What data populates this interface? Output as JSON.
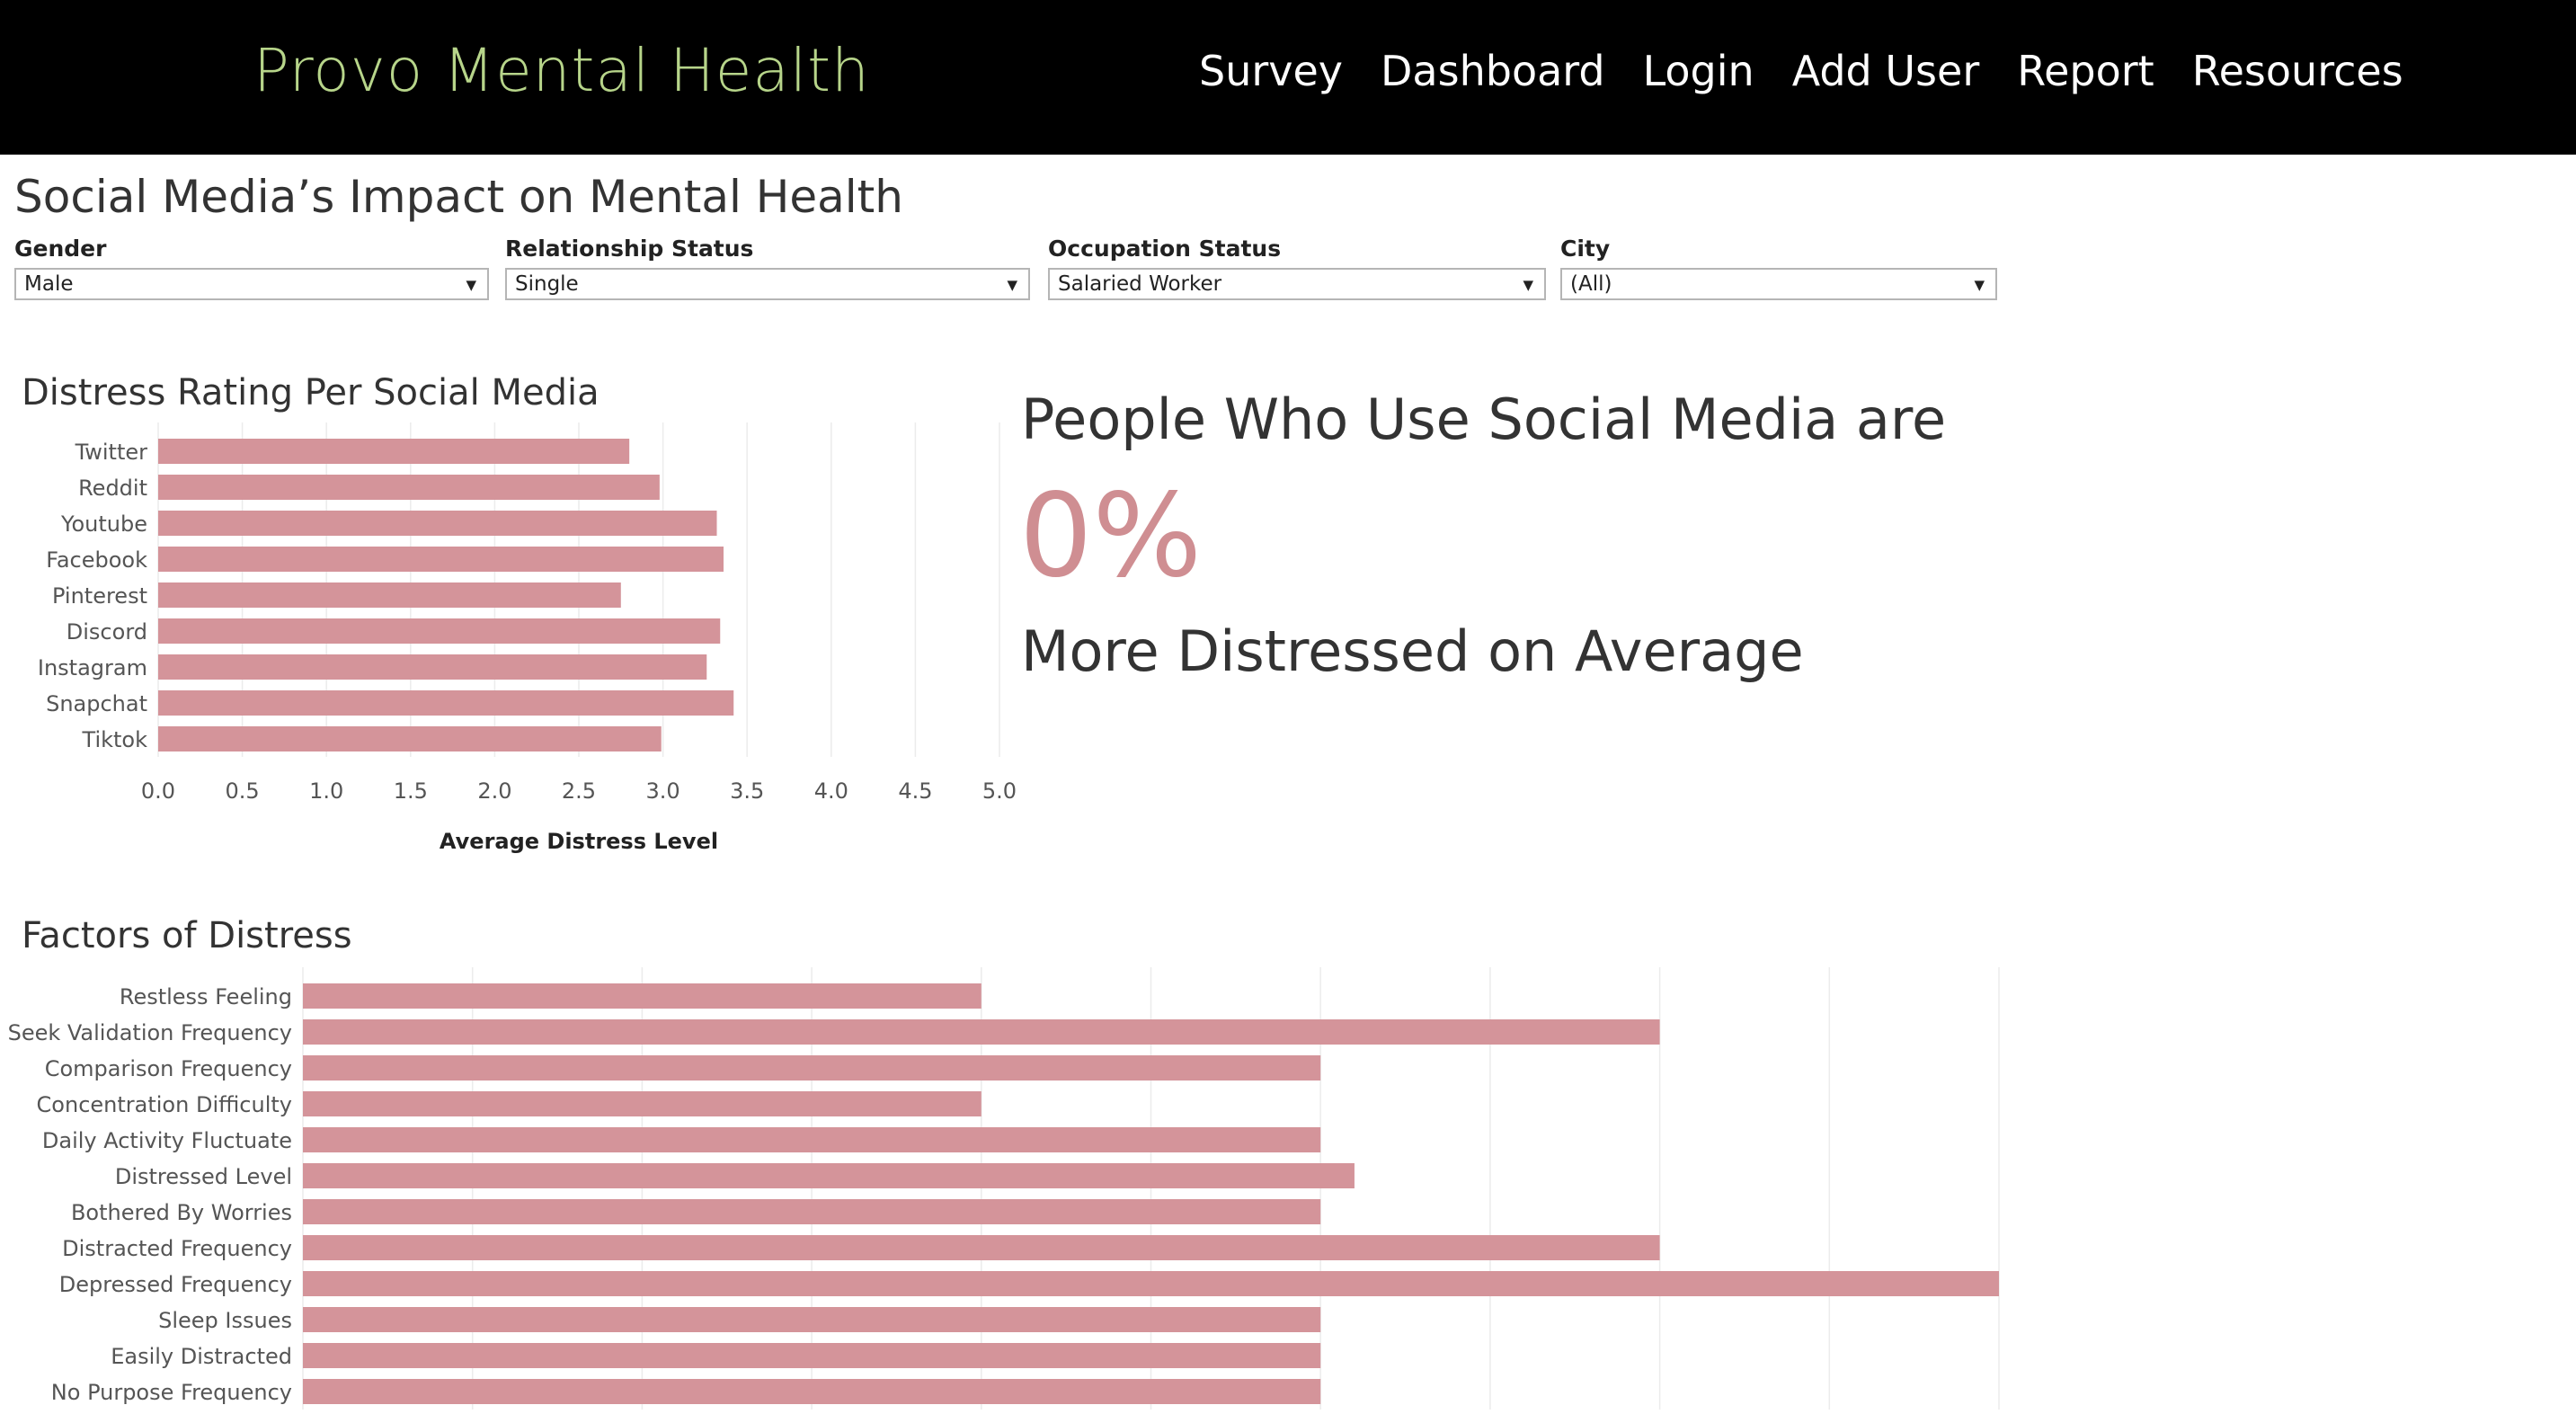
{
  "navbar": {
    "brand": "Provo Mental Health",
    "links": [
      "Survey",
      "Dashboard",
      "Login",
      "Add User",
      "Report",
      "Resources"
    ]
  },
  "dashboard": {
    "title": "Social Media’s Impact on Mental Health",
    "filters": [
      {
        "label": "Gender",
        "value": "Male"
      },
      {
        "label": "Relationship Status",
        "value": "Single"
      },
      {
        "label": "Occupation Status",
        "value": "Salaried Worker"
      },
      {
        "label": "City",
        "value": "(All)"
      }
    ]
  },
  "kpi": {
    "line1": "People Who Use Social Media are",
    "value": "0%",
    "line2": "More Distressed on Average"
  },
  "colors": {
    "bar": "#d4949a",
    "kpi_value": "#cf8e92",
    "nav_bg": "#000000",
    "brand": "#b7d58a"
  },
  "chart_data": [
    {
      "type": "bar",
      "orientation": "horizontal",
      "title": "Distress Rating Per Social Media",
      "xlabel": "Average Distress Level",
      "categories": [
        "Twitter",
        "Reddit",
        "Youtube",
        "Facebook",
        "Pinterest",
        "Discord",
        "Instagram",
        "Snapchat",
        "Tiktok"
      ],
      "values": [
        2.8,
        2.98,
        3.32,
        3.36,
        2.75,
        3.34,
        3.26,
        3.42,
        2.99
      ],
      "xlim": [
        0,
        5
      ],
      "xticks": [
        "0.0",
        "0.5",
        "1.0",
        "1.5",
        "2.0",
        "2.5",
        "3.0",
        "3.5",
        "4.0",
        "4.5",
        "5.0"
      ],
      "grid": true
    },
    {
      "type": "bar",
      "orientation": "horizontal",
      "title": "Factors of Distress",
      "categories": [
        "Restless Feeling",
        "Seek Validation Frequency",
        "Comparison Frequency",
        "Concentration Difficulty",
        "Daily Activity Fluctuate",
        "Distressed Level",
        "Bothered By Worries",
        "Distracted Frequency",
        "Depressed Frequency",
        "Sleep Issues",
        "Easily Distracted",
        "No Purpose Frequency"
      ],
      "values": [
        2.0,
        4.0,
        3.0,
        2.0,
        3.0,
        3.1,
        3.0,
        4.0,
        5.0,
        3.0,
        3.0,
        3.0
      ],
      "xlim": [
        0,
        5
      ],
      "grid": true
    }
  ]
}
